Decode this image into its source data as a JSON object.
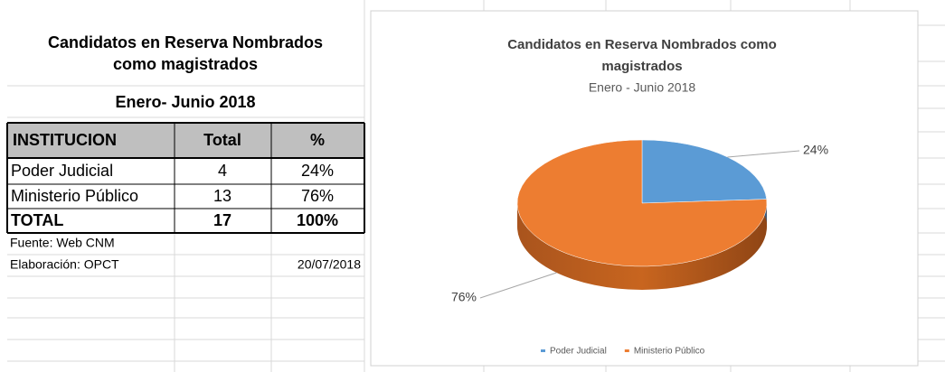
{
  "table": {
    "title": "Candidatos en Reserva Nombrados como magistrados",
    "subtitle": "Enero- Junio 2018",
    "header": [
      "INSTITUCION",
      "Total",
      "%"
    ],
    "rows": [
      [
        "Poder Judicial",
        "4",
        "24%"
      ],
      [
        "Ministerio Público",
        "13",
        "76%"
      ]
    ],
    "total": [
      "TOTAL",
      "17",
      "100%"
    ],
    "source": "Fuente: Web CNM",
    "prepared_by": "Elaboración: OPCT",
    "date": "20/07/2018"
  },
  "chart_data": {
    "type": "pie",
    "title": "Candidatos en Reserva Nombrados como magistrados",
    "subtitle": "Enero - Junio 2018",
    "categories": [
      "Poder Judicial",
      "Ministerio Público"
    ],
    "values": [
      24,
      76
    ],
    "value_labels": [
      "24%",
      "76%"
    ],
    "colors": [
      "#5b9bd5",
      "#ed7d31"
    ],
    "legend": "bottom"
  }
}
